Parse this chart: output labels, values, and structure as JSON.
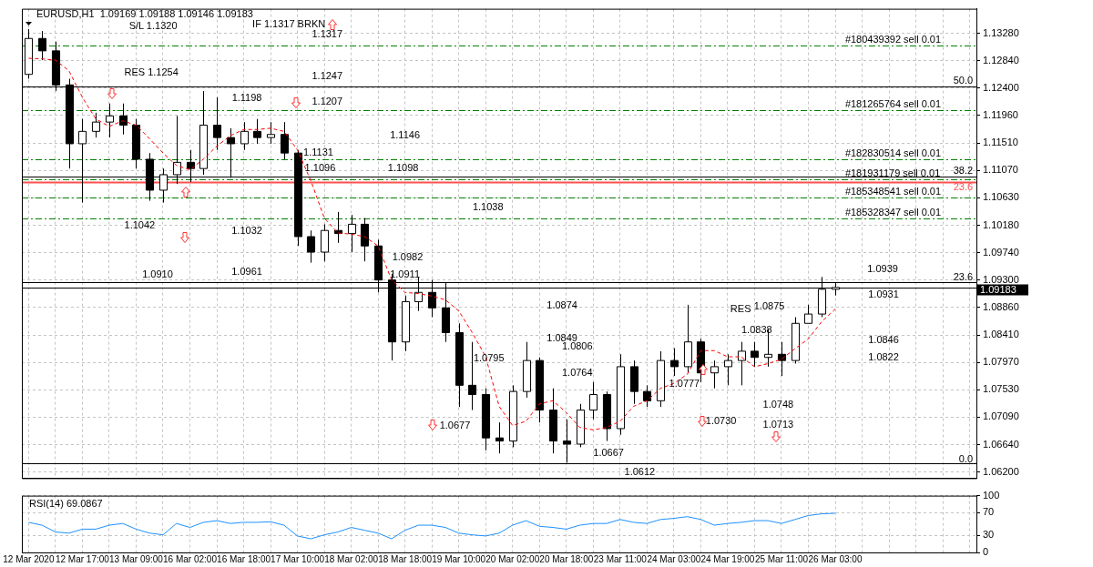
{
  "chart_data": [
    {
      "type": "candlestick",
      "title": "EURUSD,H1  1.09169 1.09188 1.09146 1.09183",
      "categories": [
        null,
        null,
        null,
        null,
        null,
        null,
        null,
        null,
        null,
        null,
        null,
        null,
        null,
        null,
        null,
        null,
        null,
        null,
        null,
        null,
        null,
        null,
        null,
        null,
        null,
        null,
        null,
        null,
        null,
        null,
        null,
        null,
        null,
        null,
        null,
        null,
        null,
        null,
        null,
        null,
        null,
        null,
        null,
        null,
        null,
        null,
        null,
        null,
        null,
        null,
        null,
        null,
        null,
        null,
        null,
        null,
        null,
        null,
        null,
        null,
        null,
        null,
        null,
        null,
        null,
        null,
        null,
        null,
        null,
        null,
        null
      ],
      "ohlc": [
        [
          1.1262,
          1.1335,
          1.1255,
          1.132
        ],
        [
          1.132,
          1.1332,
          1.1285,
          1.13
        ],
        [
          1.13,
          1.1315,
          1.1235,
          1.1245
        ],
        [
          1.1245,
          1.1255,
          1.111,
          1.115
        ],
        [
          1.115,
          1.119,
          1.1055,
          1.117
        ],
        [
          1.117,
          1.12,
          1.116,
          1.1185
        ],
        [
          1.1185,
          1.1215,
          1.116,
          1.1195
        ],
        [
          1.1195,
          1.1215,
          1.1165,
          1.118
        ],
        [
          1.118,
          1.119,
          1.111,
          1.1125
        ],
        [
          1.1125,
          1.1135,
          1.1058,
          1.1075
        ],
        [
          1.1075,
          1.111,
          1.1055,
          1.11
        ],
        [
          1.11,
          1.1195,
          1.1085,
          1.112
        ],
        [
          1.112,
          1.114,
          1.1088,
          1.111
        ],
        [
          1.111,
          1.1235,
          1.11,
          1.118
        ],
        [
          1.118,
          1.1225,
          1.114,
          1.116
        ],
        [
          1.116,
          1.1175,
          1.1095,
          1.115
        ],
        [
          1.115,
          1.1185,
          1.114,
          1.117
        ],
        [
          1.117,
          1.119,
          1.115,
          1.116
        ],
        [
          1.116,
          1.1185,
          1.115,
          1.1165
        ],
        [
          1.1165,
          1.1185,
          1.1125,
          1.1135
        ],
        [
          1.1135,
          1.114,
          1.0985,
          1.1
        ],
        [
          1.1,
          1.101,
          1.0958,
          1.0975
        ],
        [
          1.0975,
          1.102,
          1.096,
          1.101
        ],
        [
          1.101,
          1.104,
          1.099,
          1.1005
        ],
        [
          1.1005,
          1.1035,
          1.0975,
          1.102
        ],
        [
          1.102,
          1.103,
          1.096,
          1.0985
        ],
        [
          1.0985,
          1.0995,
          1.091,
          1.093
        ],
        [
          1.093,
          1.094,
          1.08,
          1.083
        ],
        [
          1.083,
          1.0905,
          1.0815,
          1.0895
        ],
        [
          1.0895,
          1.0935,
          1.088,
          1.091
        ],
        [
          1.091,
          1.093,
          1.087,
          1.0885
        ],
        [
          1.0885,
          1.0925,
          1.083,
          1.0845
        ],
        [
          1.0845,
          1.086,
          1.0725,
          1.076
        ],
        [
          1.076,
          1.083,
          1.072,
          1.0745
        ],
        [
          1.0745,
          1.0755,
          1.0655,
          1.0675
        ],
        [
          1.0675,
          1.07,
          1.065,
          1.067
        ],
        [
          1.067,
          1.076,
          1.066,
          1.075
        ],
        [
          1.075,
          1.083,
          1.074,
          1.08
        ],
        [
          1.08,
          1.0805,
          1.07,
          1.072
        ],
        [
          1.072,
          1.0755,
          1.065,
          1.067
        ],
        [
          1.067,
          1.0705,
          1.0635,
          1.0665
        ],
        [
          1.0665,
          1.073,
          1.066,
          1.072
        ],
        [
          1.072,
          1.0765,
          1.0705,
          1.0745
        ],
        [
          1.0745,
          1.075,
          1.067,
          1.069
        ],
        [
          1.069,
          1.081,
          1.068,
          1.079
        ],
        [
          1.079,
          1.08,
          1.073,
          1.075
        ],
        [
          1.075,
          1.076,
          1.0725,
          1.0735
        ],
        [
          1.0735,
          1.0815,
          1.0725,
          1.08
        ],
        [
          1.08,
          1.082,
          1.0775,
          1.079
        ],
        [
          1.079,
          1.089,
          1.078,
          1.083
        ],
        [
          1.083,
          1.0835,
          1.0765,
          1.078
        ],
        [
          1.078,
          1.08,
          1.0755,
          1.079
        ],
        [
          1.079,
          1.081,
          1.076,
          1.08
        ],
        [
          1.08,
          1.083,
          1.076,
          1.0815
        ],
        [
          1.0815,
          1.083,
          1.079,
          1.0805
        ],
        [
          1.0805,
          1.085,
          1.079,
          1.081
        ],
        [
          1.081,
          1.083,
          1.0775,
          1.08
        ],
        [
          1.08,
          1.087,
          1.0795,
          1.086
        ],
        [
          1.086,
          1.089,
          1.086,
          1.0875
        ],
        [
          1.0875,
          1.0935,
          1.087,
          1.0915
        ],
        [
          1.0915,
          1.0925,
          1.0905,
          1.0918
        ],
        null,
        null,
        null,
        null,
        null,
        null,
        null,
        null,
        null,
        null
      ],
      "series": [
        {
          "type": "line",
          "color": "#ff0000",
          "values": [
            1.1288,
            1.1287,
            1.1285,
            1.1268,
            1.1225,
            1.119,
            1.1178,
            1.1187,
            1.118,
            1.1158,
            1.1135,
            1.1115,
            1.1108,
            1.1125,
            1.1146,
            1.1163,
            1.1173,
            1.1173,
            1.1175,
            1.117,
            1.114,
            1.109,
            1.103,
            1.1006,
            1.1004,
            1.1,
            1.0985,
            1.093,
            1.091,
            1.0908,
            1.0904,
            1.0898,
            1.088,
            1.0845,
            1.0806,
            1.0726,
            1.0695,
            1.0702,
            1.073,
            1.0735,
            1.0716,
            1.0692,
            1.0688,
            1.0692,
            1.0702,
            1.0726,
            1.0735,
            1.0755,
            1.0763,
            1.0778,
            1.0816,
            1.0816,
            1.0806,
            1.0806,
            1.079,
            1.0795,
            1.0802,
            1.0819,
            1.0835,
            1.0863,
            1.0883,
            null,
            null,
            null,
            null,
            null,
            null,
            null,
            null,
            null,
            null
          ]
        }
      ],
      "line_style": "dashed",
      "marker": "none",
      "ylim": [
        1.061,
        1.1368
      ],
      "yticks": [
        {
          "value": 1.1328,
          "label": "1.13280"
        },
        {
          "value": 1.1284,
          "label": "1.12840"
        },
        {
          "value": 1.124,
          "label": "1.12400"
        },
        {
          "value": 1.1196,
          "label": "1.11960"
        },
        {
          "value": 1.1151,
          "label": "1.11510"
        },
        {
          "value": 1.1107,
          "label": "1.11070"
        },
        {
          "value": 1.1063,
          "label": "1.10630"
        },
        {
          "value": 1.1018,
          "label": "1.10180"
        },
        {
          "value": 1.0974,
          "label": "1.09740"
        },
        {
          "value": 1.093,
          "label": "1.09300"
        },
        {
          "value": 1.0886,
          "label": "1.08860"
        },
        {
          "value": 1.0841,
          "label": "1.08410"
        },
        {
          "value": 1.0797,
          "label": "1.07970"
        },
        {
          "value": 1.0753,
          "label": "1.07530"
        },
        {
          "value": 1.0709,
          "label": "1.07090"
        },
        {
          "value": 1.0664,
          "label": "1.06640"
        },
        {
          "value": 1.062,
          "label": "1.06200"
        }
      ],
      "grid": true,
      "tick_labels": "y",
      "ref_lines": [
        {
          "axis": "y",
          "value": 1.1308,
          "label": "#180439392 sell 0.01",
          "color": "#008000",
          "line_style": "dashed"
        },
        {
          "axis": "y",
          "value": 1.1204,
          "label": "#181265764 sell 0.01",
          "color": "#008000",
          "line_style": "dashed"
        },
        {
          "axis": "y",
          "value": 1.1125,
          "label": "#182830514 sell 0.01",
          "color": "#008000",
          "line_style": "dashed"
        },
        {
          "axis": "y",
          "value": 1.1093,
          "label": "#181931179 sell 0.01",
          "color": "#008000",
          "line_style": "dashed"
        },
        {
          "axis": "y",
          "value": 1.1063,
          "label": "#185348541 sell 0.01",
          "color": "#008000",
          "line_style": "dashed"
        },
        {
          "axis": "y",
          "value": 1.103,
          "label": "#185328347 sell 0.01",
          "color": "#008000",
          "line_style": "dashed"
        },
        {
          "axis": "y",
          "value": 1.1242,
          "color": "#000000",
          "line_style": "solid"
        },
        {
          "axis": "y",
          "value": 1.1097,
          "color": "#000000",
          "line_style": "solid"
        },
        {
          "axis": "y",
          "value": 1.1088,
          "color": "#ff5050",
          "line_style": "solid"
        },
        {
          "axis": "y",
          "value": 1.0926,
          "color": "#000000",
          "line_style": "solid"
        },
        {
          "axis": "y",
          "value": 1.0634,
          "color": "#000000",
          "line_style": "solid"
        },
        {
          "axis": "y",
          "value": 1.09183,
          "label": "1.09183",
          "color": "#000000"
        }
      ],
      "annotations": [
        "S/L 1.1320",
        "IF 1.1317 BRKN",
        "RES 1.1254",
        "1.1317",
        "1.1247",
        "1.1198",
        "1.1207",
        "1.1146",
        "1.1131",
        "1.1096",
        "1.1098",
        "1.1042",
        "1.1032",
        "1.0961",
        "1.0910",
        "1.1038",
        "1.0982",
        "1.0911",
        "1.0874",
        "1.0849",
        "1.0795",
        "1.0806",
        "1.0764",
        "1.0677",
        "1.0667",
        "1.0612",
        "1.0777",
        "1.0730",
        "RES",
        "1.0875",
        "1.0838",
        "1.0748",
        "1.0713",
        "1.0939",
        "1.0931",
        "1.0846",
        "1.0822",
        "50.0",
        "38.2",
        "23.6",
        "23.6",
        "0.0"
      ]
    },
    {
      "type": "line",
      "title": "RSI(14) 69.0867",
      "categories": [
        "12 Mar 2020",
        null,
        null,
        null,
        "12 Mar 17:00",
        null,
        null,
        null,
        "13 Mar 09:00",
        null,
        null,
        null,
        "16 Mar 02:00",
        null,
        null,
        null,
        "16 Mar 18:00",
        null,
        null,
        null,
        "17 Mar 10:00",
        null,
        null,
        null,
        "18 Mar 02:00",
        null,
        null,
        null,
        "18 Mar 18:00",
        null,
        null,
        null,
        "19 Mar 10:00",
        null,
        null,
        null,
        "20 Mar 02:00",
        null,
        null,
        null,
        "20 Mar 18:00",
        null,
        null,
        null,
        "23 Mar 11:00",
        null,
        null,
        null,
        "24 Mar 03:00",
        null,
        null,
        null,
        "24 Mar 19:00",
        null,
        null,
        null,
        "25 Mar 11:00",
        null,
        null,
        null,
        "26 Mar 03:00",
        null,
        null,
        null,
        null,
        null,
        null,
        null,
        null,
        null,
        null
      ],
      "values": [
        53,
        48,
        36,
        34,
        41,
        41,
        48,
        51,
        41,
        34,
        31,
        51,
        44,
        53,
        56,
        51,
        53,
        53,
        54,
        48,
        29,
        24,
        31,
        36,
        44,
        39,
        34,
        24,
        39,
        48,
        48,
        44,
        34,
        31,
        29,
        34,
        48,
        56,
        46,
        44,
        41,
        48,
        51,
        51,
        58,
        53,
        51,
        58,
        60,
        63,
        58,
        48,
        51,
        53,
        56,
        56,
        51,
        58,
        65,
        68,
        69,
        null,
        null,
        null,
        null,
        null,
        null,
        null,
        null,
        null,
        null
      ],
      "color": "#1e90ff",
      "marker": "none",
      "ylim": [
        0,
        100
      ],
      "yticks": [
        0,
        30,
        70,
        100
      ],
      "grid": true
    }
  ]
}
